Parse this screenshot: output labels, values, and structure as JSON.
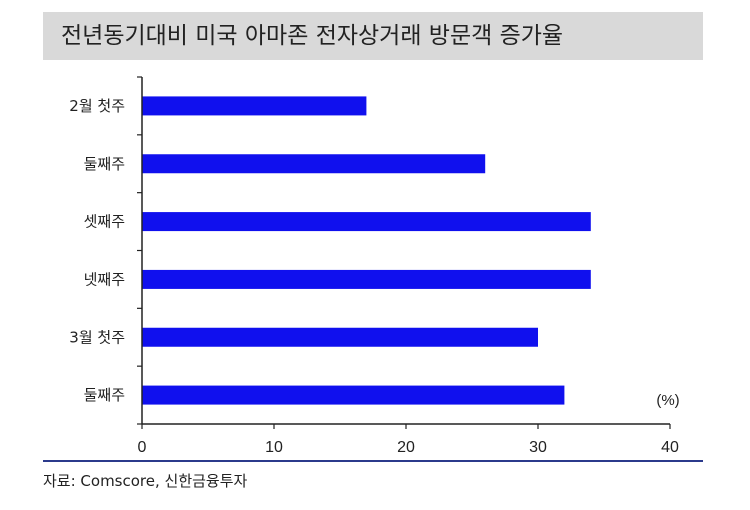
{
  "title": "전년동기대비 미국 아마존 전자상거래 방문객 증가율",
  "source": "자료: Comscore, 신한금융투자",
  "colors": {
    "bar": "#1010ee",
    "title_bg": "#d9d9d9",
    "rule": "#2b3a8c"
  },
  "chart_data": {
    "type": "bar",
    "orientation": "horizontal",
    "categories": [
      "2월 첫주",
      "둘째주",
      "셋째주",
      "넷째주",
      "3월 첫주",
      "둘째주"
    ],
    "values": [
      17,
      26,
      34,
      34,
      30,
      32
    ],
    "xlim": [
      0,
      40
    ],
    "xticks": [
      "0",
      "10",
      "20",
      "30",
      "40"
    ],
    "unit": "(%)",
    "grid": false,
    "title": "전년동기대비 미국 아마존 전자상거래 방문객 증가율"
  }
}
